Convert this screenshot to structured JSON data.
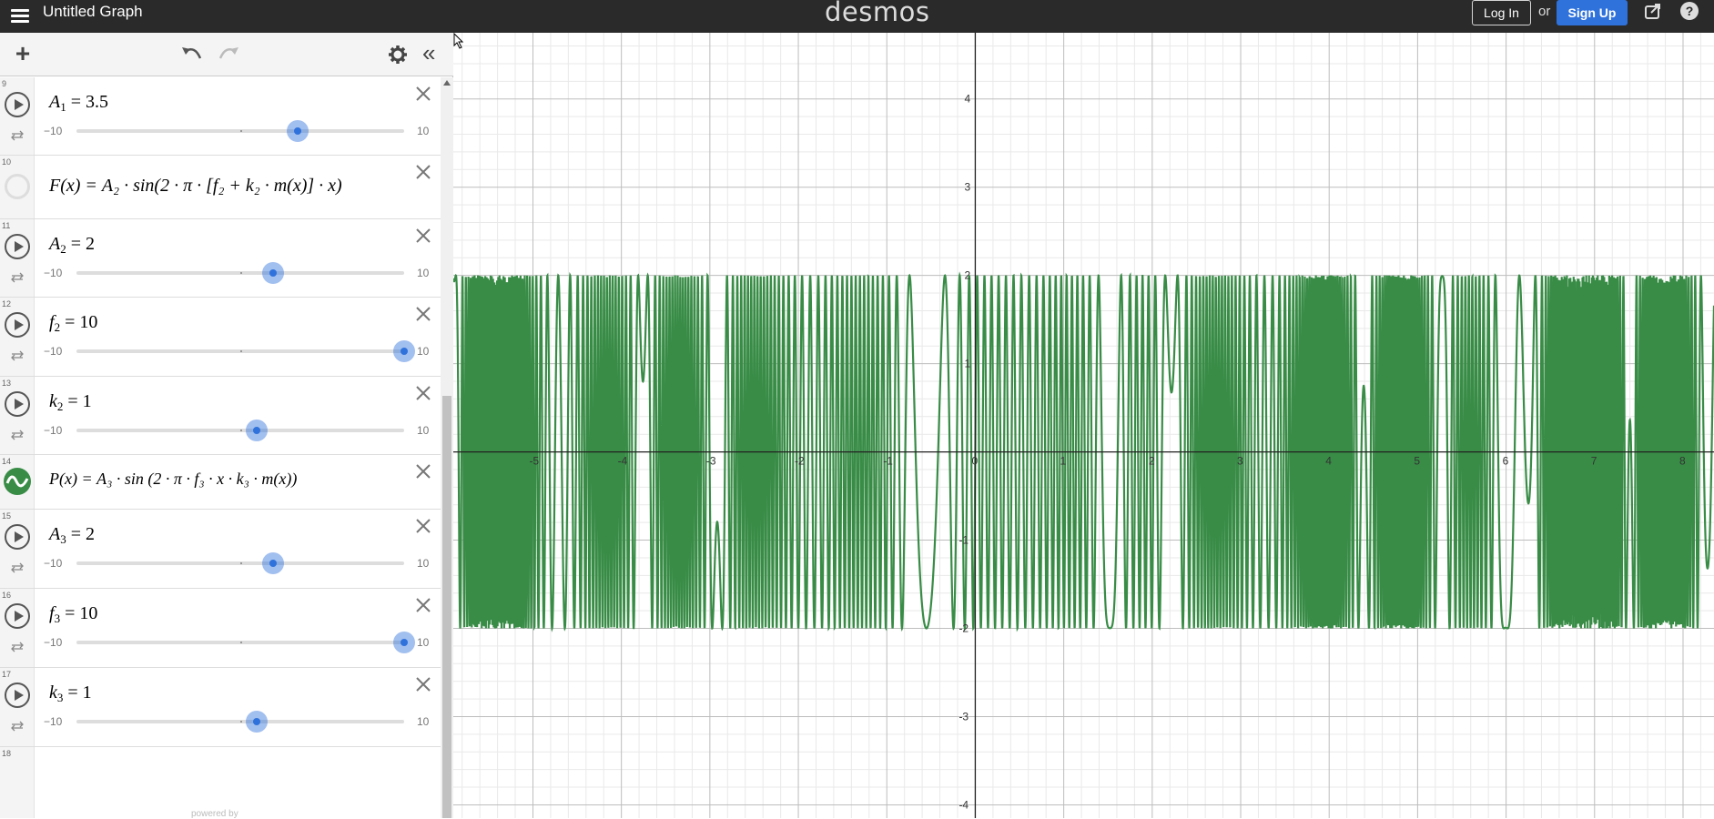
{
  "header": {
    "title": "Untitled Graph",
    "brand": "desmos",
    "login_label": "Log In",
    "or_label": "or",
    "signup_label": "Sign Up",
    "help_label": "?"
  },
  "toolbar": {
    "add_label": "+",
    "collapse_label": "«"
  },
  "expressions": [
    {
      "index": "9",
      "latex_name": "A",
      "sub": "1",
      "value": "3.5",
      "min": "−10",
      "max": "10",
      "slider_fraction": 0.675
    },
    {
      "index": "10",
      "formula": "F"
    },
    {
      "index": "11",
      "latex_name": "A",
      "sub": "2",
      "value": "2",
      "min": "−10",
      "max": "10",
      "slider_fraction": 0.6
    },
    {
      "index": "12",
      "latex_name": "f",
      "sub": "2",
      "value": "10",
      "min": "−10",
      "max": "10",
      "slider_fraction": 1.0
    },
    {
      "index": "13",
      "latex_name": "k",
      "sub": "2",
      "value": "1",
      "min": "−10",
      "max": "10",
      "slider_fraction": 0.55
    },
    {
      "index": "14",
      "formula": "P"
    },
    {
      "index": "15",
      "latex_name": "A",
      "sub": "3",
      "value": "2",
      "min": "−10",
      "max": "10",
      "slider_fraction": 0.6
    },
    {
      "index": "16",
      "latex_name": "f",
      "sub": "3",
      "value": "10",
      "min": "−10",
      "max": "10",
      "slider_fraction": 1.0
    },
    {
      "index": "17",
      "latex_name": "k",
      "sub": "3",
      "value": "1",
      "min": "−10",
      "max": "10",
      "slider_fraction": 0.55
    },
    {
      "index": "18"
    }
  ],
  "formulas": {
    "F": {
      "lhs": "F(x) =",
      "text": "A₂ · sin(2 · π · [f₂ + k₂ · m(x)] · x)"
    },
    "P": {
      "lhs": "P(x) =",
      "text": "A₃ · sin (2 · π · f₃ · x · k₃ · m(x))"
    }
  },
  "graph": {
    "x_range": [
      -5.9,
      8.35
    ],
    "y_range": [
      -4.15,
      4.75
    ],
    "x_ticks": [
      "-5",
      "-4",
      "-3",
      "-2",
      "-1",
      "0",
      "1",
      "2",
      "3",
      "4",
      "5",
      "6",
      "7",
      "8"
    ],
    "y_ticks": [
      "-4",
      "-3",
      "-2",
      "-1",
      "1",
      "2",
      "3",
      "4"
    ],
    "curve_color": "#388c46",
    "amplitude": 2,
    "grid": true
  },
  "footer": {
    "powered_by": "powered by"
  }
}
